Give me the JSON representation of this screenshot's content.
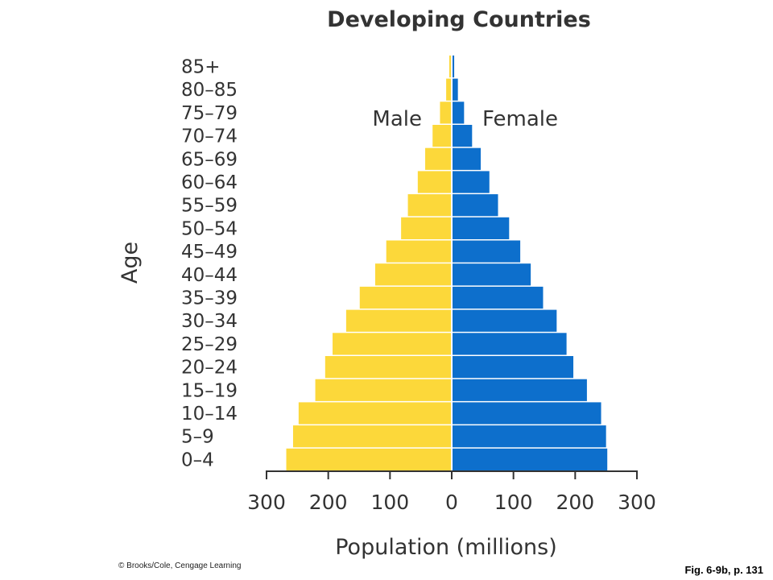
{
  "chart_data": {
    "type": "bar",
    "orientation": "horizontal",
    "subtype": "population-pyramid",
    "title": "Developing Countries",
    "xlabel": "Population (millions)",
    "ylabel": "Age",
    "categories": [
      "0–4",
      "5–9",
      "10–14",
      "15–19",
      "20–24",
      "25–29",
      "30–34",
      "35–39",
      "40–44",
      "45–49",
      "50–54",
      "55–59",
      "60–64",
      "65–69",
      "70–74",
      "75–79",
      "80–85",
      "85+"
    ],
    "series": [
      {
        "name": "Male",
        "color": "#FCD83A",
        "side": "left",
        "values": [
          268,
          257,
          248,
          221,
          205,
          193,
          171,
          149,
          124,
          106,
          82,
          71,
          55,
          43,
          31,
          19,
          9,
          4
        ]
      },
      {
        "name": "Female",
        "color": "#0D6FCC",
        "side": "right",
        "values": [
          252,
          250,
          242,
          219,
          197,
          186,
          170,
          148,
          128,
          111,
          93,
          75,
          61,
          47,
          33,
          20,
          10,
          4
        ]
      }
    ],
    "xlim": [
      -300,
      300
    ],
    "xticks": [
      -300,
      -200,
      -100,
      0,
      100,
      200,
      300
    ],
    "xtick_labels": [
      "300",
      "200",
      "100",
      "0",
      "100",
      "200",
      "300"
    ],
    "grid": false,
    "legend": "inline labels near top"
  },
  "footer": {
    "credit": "© Brooks/Cole, Cengage Learning",
    "figure_ref": "Fig. 6-9b, p. 131"
  }
}
